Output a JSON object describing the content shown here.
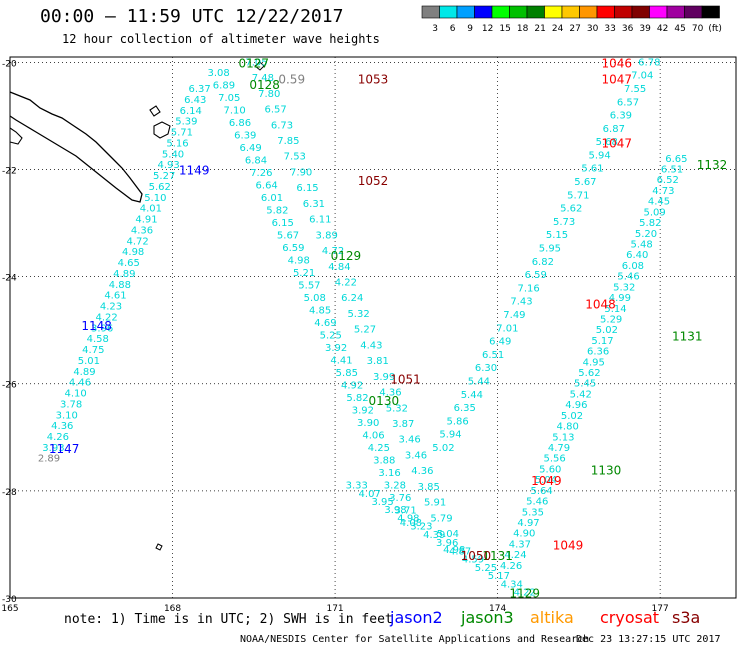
{
  "header": {
    "title": "00:00 – 11:59 UTC 12/22/2017",
    "subtitle": "12 hour collection of altimeter wave heights"
  },
  "colorbar": {
    "bins": [
      {
        "label": "3",
        "color": "#808080"
      },
      {
        "label": "6",
        "color": "#00e8e8"
      },
      {
        "label": "9",
        "color": "#00a0ff"
      },
      {
        "label": "12",
        "color": "#0000ff"
      },
      {
        "label": "15",
        "color": "#00ff00"
      },
      {
        "label": "18",
        "color": "#00c000"
      },
      {
        "label": "21",
        "color": "#008000"
      },
      {
        "label": "24",
        "color": "#ffff00"
      },
      {
        "label": "27",
        "color": "#ffc800"
      },
      {
        "label": "30",
        "color": "#ff9600"
      },
      {
        "label": "33",
        "color": "#ff0000"
      },
      {
        "label": "36",
        "color": "#c00000"
      },
      {
        "label": "39",
        "color": "#800000"
      },
      {
        "label": "42",
        "color": "#ff00ff"
      },
      {
        "label": "45",
        "color": "#a000a0"
      },
      {
        "label": "70",
        "color": "#600060"
      },
      {
        "label": "(ft)",
        "color": "#000000"
      }
    ]
  },
  "map": {
    "lon_range": [
      165,
      178.4
    ],
    "lat_range": [
      -30,
      -19.9
    ],
    "lon_ticks": [
      165,
      168,
      171,
      174,
      177
    ],
    "lat_ticks": [
      -20,
      -22,
      -24,
      -26,
      -28,
      -30
    ],
    "lon_tick_labels": [
      "165",
      "168",
      "171",
      "174",
      "177"
    ],
    "lat_tick_labels": [
      "-20",
      "-22",
      "-24",
      "-26",
      "-28",
      "-30"
    ],
    "track_color": "#00d8d8",
    "tracks": [
      {
        "start": [
          165.72,
          -27.4
        ],
        "end": [
          168.5,
          -20.5
        ],
        "values": [
          "2.89",
          "3.93",
          "4.26",
          "4.36",
          "3.10",
          "3.78",
          "4.10",
          "4.46",
          "4.89",
          "5.01",
          "4.75",
          "4.58",
          "3.96",
          "4.22",
          "4.23",
          "4.61",
          "4.88",
          "4.89",
          "4.65",
          "4.98",
          "4.72",
          "4.36",
          "4.91",
          "4.01",
          "5.10",
          "5.62",
          "5.27",
          "4.93",
          "5.40",
          "5.16",
          "5.71",
          "5.39",
          "6.14",
          "6.43",
          "6.37"
        ],
        "colors": {
          "0": "#808080"
        }
      },
      {
        "start": [
          168.85,
          -20.2
        ],
        "end": [
          172.4,
          -28.6
        ],
        "values": [
          "3.08",
          "6.89",
          "7.05",
          "7.10",
          "6.86",
          "6.39",
          "6.49",
          "6.84",
          "7.26",
          "6.64",
          "6.01",
          "5.82",
          "6.15",
          "5.67",
          "6.59",
          "4.98",
          "5.21",
          "5.57",
          "5.08",
          "4.85",
          "4.69",
          "5.25",
          "3.92",
          "4.41",
          "5.85",
          "4.92",
          "5.82",
          "3.92",
          "3.90",
          "4.06",
          "4.25",
          "3.88",
          "3.16",
          "3.28",
          "3.76",
          "3.71",
          "4.08"
        ]
      },
      {
        "start": [
          169.55,
          -20.0
        ],
        "end": [
          173.2,
          -29.1
        ],
        "values": [
          "7.05",
          "7.48",
          "7.80",
          "6.57",
          "6.73",
          "7.85",
          "7.53",
          "7.90",
          "6.15",
          "6.31",
          "6.11",
          "3.89",
          "4.72",
          "4.84",
          "4.22",
          "6.24",
          "5.32",
          "5.27",
          "4.43",
          "3.81",
          "3.99",
          "4.36",
          "5.32",
          "3.87",
          "3.46",
          "3.46",
          "4.36",
          "3.85",
          "5.91",
          "5.79",
          "5.04",
          "4.98"
        ]
      },
      {
        "start": [
          171.4,
          -27.9
        ],
        "end": [
          174.5,
          -29.9
        ],
        "values": [
          "3.33",
          "4.07",
          "3.95",
          "3.98",
          "4.98",
          "3.23",
          "4.39",
          "3.96",
          "4.87",
          "4.59",
          "5.25",
          "5.17",
          "4.34",
          "4.22"
        ]
      },
      {
        "start": [
          173.0,
          -27.2
        ],
        "end": [
          176.8,
          -20.0
        ],
        "values": [
          "5.02",
          "5.94",
          "5.86",
          "6.35",
          "5.44",
          "5.44",
          "6.30",
          "6.51",
          "6.49",
          "7.01",
          "7.49",
          "7.43",
          "7.16",
          "6.59",
          "6.82",
          "5.95",
          "5.15",
          "5.73",
          "5.62",
          "5.71",
          "5.67",
          "5.61",
          "5.94",
          "5.68",
          "6.87",
          "6.39",
          "6.57",
          "7.55",
          "7.04",
          "6.78"
        ]
      },
      {
        "start": [
          174.25,
          -29.4
        ],
        "end": [
          177.3,
          -21.8
        ],
        "values": [
          "4.26",
          "4.24",
          "4.37",
          "4.90",
          "4.97",
          "5.35",
          "5.46",
          "5.64",
          "5.04",
          "5.60",
          "5.56",
          "4.79",
          "5.13",
          "4.80",
          "5.02",
          "4.96",
          "5.42",
          "5.45",
          "5.62",
          "4.95",
          "6.36",
          "5.17",
          "5.02",
          "5.29",
          "5.14",
          "4.99",
          "5.32",
          "5.46",
          "6.08",
          "6.40",
          "5.48",
          "5.20",
          "5.82",
          "5.09",
          "4.45",
          "4.73",
          "6.52",
          "6.51",
          "6.65"
        ]
      }
    ],
    "time_labels": [
      {
        "text": "1147",
        "lon": 166.0,
        "lat": -27.2,
        "color": "#0000ff"
      },
      {
        "text": "1148",
        "lon": 166.6,
        "lat": -24.9,
        "color": "#0000ff"
      },
      {
        "text": "1149",
        "lon": 168.4,
        "lat": -22.0,
        "color": "#0000ff"
      },
      {
        "text": "0127",
        "lon": 169.5,
        "lat": -20.0,
        "color": "#008800"
      },
      {
        "text": "0128",
        "lon": 169.7,
        "lat": -20.4,
        "color": "#008800"
      },
      {
        "text": "0129",
        "lon": 171.2,
        "lat": -23.6,
        "color": "#008800"
      },
      {
        "text": "0130",
        "lon": 171.9,
        "lat": -26.3,
        "color": "#008800"
      },
      {
        "text": "1131",
        "lon": 174.0,
        "lat": -29.2,
        "color": "#008800"
      },
      {
        "text": "1129",
        "lon": 174.5,
        "lat": -29.9,
        "color": "#008800"
      },
      {
        "text": "1130",
        "lon": 176.0,
        "lat": -27.6,
        "color": "#008800"
      },
      {
        "text": "1131",
        "lon": 177.5,
        "lat": -25.1,
        "color": "#008800"
      },
      {
        "text": "1132",
        "lon": 178.4,
        "lat": -21.9,
        "color": "#008800"
      },
      {
        "text": "1053",
        "lon": 171.7,
        "lat": -20.3,
        "color": "#880000"
      },
      {
        "text": "1052",
        "lon": 171.7,
        "lat": -22.2,
        "color": "#880000"
      },
      {
        "text": "1051",
        "lon": 172.3,
        "lat": -25.9,
        "color": "#880000"
      },
      {
        "text": "1050",
        "lon": 173.6,
        "lat": -29.2,
        "color": "#880000"
      },
      {
        "text": "1046",
        "lon": 176.2,
        "lat": -20.0,
        "color": "#ff0000"
      },
      {
        "text": "1047",
        "lon": 176.2,
        "lat": -20.3,
        "color": "#ff0000"
      },
      {
        "text": "1047",
        "lon": 176.2,
        "lat": -21.5,
        "color": "#ff0000"
      },
      {
        "text": "1048",
        "lon": 175.9,
        "lat": -24.5,
        "color": "#ff0000"
      },
      {
        "text": "1049",
        "lon": 174.9,
        "lat": -27.8,
        "color": "#ff0000"
      },
      {
        "text": "1049",
        "lon": 175.3,
        "lat": -29.0,
        "color": "#ff0000"
      },
      {
        "text": "0.59",
        "lon": 170.2,
        "lat": -20.3,
        "color": "#808080"
      }
    ]
  },
  "footer": {
    "note": "note: 1) Time is in UTC; 2) SWH is in feet",
    "satellites": {
      "jason2": "jason2",
      "jason3": "jason3",
      "altika": "altika",
      "cryosat": "cryosat",
      "s3a": "s3a"
    },
    "credit": "NOAA/NESDIS Center for Satellite Applications and Research",
    "timestamp": "Dec 23 13:27:15 UTC 2017"
  }
}
